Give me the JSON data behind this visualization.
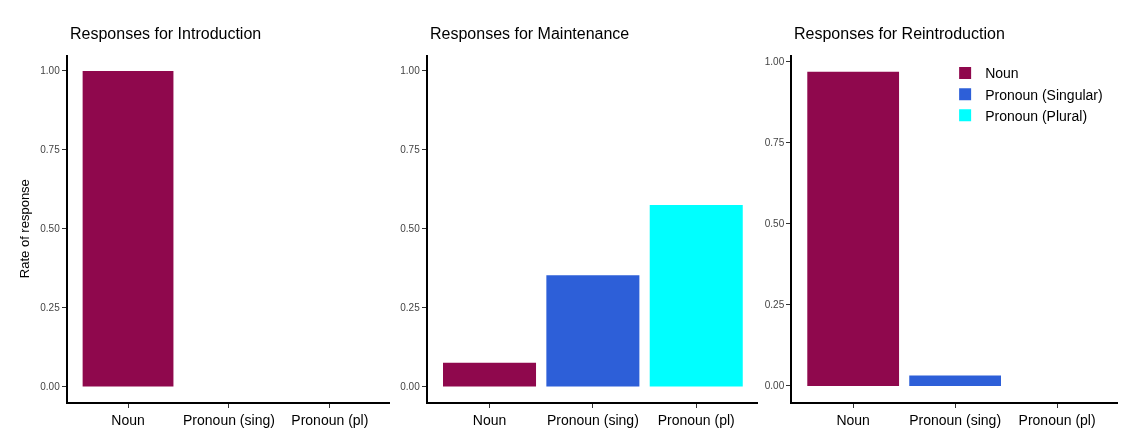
{
  "chart_data": [
    {
      "type": "bar",
      "title": "Responses for Introduction",
      "ylabel": "Rate of response",
      "categories": [
        "Noun",
        "Pronoun (sing)",
        "Pronoun (pl)"
      ],
      "values": [
        1.0,
        0,
        0
      ],
      "colors": [
        "#8f084d",
        "#2d5fd8",
        "#00ffff"
      ],
      "ylim": [
        -0.05,
        1.05
      ],
      "yticks": [
        {
          "value": 0,
          "label": "0.00"
        },
        {
          "value": 0.25,
          "label": "0.25"
        },
        {
          "value": 0.5,
          "label": "0.50"
        },
        {
          "value": 0.75,
          "label": "0.75"
        },
        {
          "value": 1,
          "label": "1.00"
        }
      ],
      "grid": false,
      "legend": false
    },
    {
      "type": "bar",
      "title": "Responses for Maintenance",
      "categories": [
        "Noun",
        "Pronoun (sing)",
        "Pronoun (pl)"
      ],
      "values": [
        0.075,
        0.352,
        0.575
      ],
      "colors": [
        "#8f084d",
        "#2d5fd8",
        "#00ffff"
      ],
      "ylim": [
        -0.05,
        1.05
      ],
      "yticks": [
        {
          "value": 0,
          "label": "0.00"
        },
        {
          "value": 0.25,
          "label": "0.25"
        },
        {
          "value": 0.5,
          "label": "0.50"
        },
        {
          "value": 0.75,
          "label": "0.75"
        },
        {
          "value": 1,
          "label": "1.00"
        }
      ],
      "grid": false,
      "legend": false
    },
    {
      "type": "bar",
      "title": "Responses for Reintroduction",
      "categories": [
        "Noun",
        "Pronoun (sing)",
        "Pronoun (pl)"
      ],
      "series": [
        {
          "name": "Noun",
          "color": "#8f084d",
          "values": [
            0.969,
            null,
            null
          ]
        },
        {
          "name": "Pronoun (Singular)",
          "color": "#2d5fd8",
          "values": [
            null,
            0.032,
            null
          ]
        },
        {
          "name": "Pronoun (Plural)",
          "color": "#00ffff",
          "values": [
            null,
            null,
            0
          ]
        }
      ],
      "ylim": [
        -0.05,
        1.02
      ],
      "yticks": [
        {
          "value": 0,
          "label": "0.00"
        },
        {
          "value": 0.25,
          "label": "0.25"
        },
        {
          "value": 0.5,
          "label": "0.50"
        },
        {
          "value": 0.75,
          "label": "0.75"
        },
        {
          "value": 1,
          "label": "1.00"
        }
      ],
      "grid": false,
      "legend": "top right"
    }
  ]
}
